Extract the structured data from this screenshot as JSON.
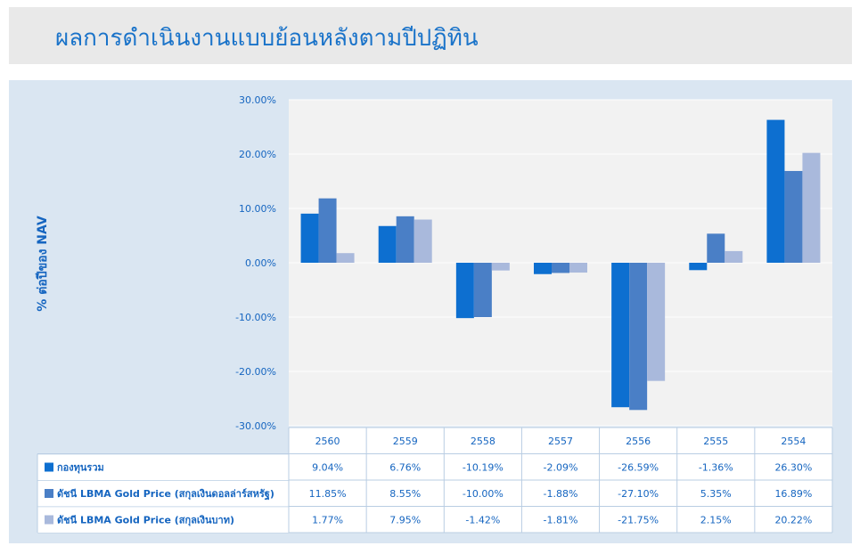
{
  "header": {
    "title": "ผลการดำเนินงานแบบย้อนหลังตามปีปฏิทิน"
  },
  "colors": {
    "fund": "#0d6fd0",
    "lbma_usd": "#4a7fc6",
    "lbma_thb": "#a9b9dc",
    "text": "#1565c0",
    "panel": "#dae6f2",
    "plot": "#f2f2f2"
  },
  "chart_data": {
    "type": "bar",
    "ylabel": "% ต่อปีของ NAV",
    "ylim": [
      -30,
      30
    ],
    "yticks": [
      "30.00%",
      "20.00%",
      "10.00%",
      "0.00%",
      "-10.00%",
      "-20.00%",
      "-30.00%"
    ],
    "ytick_values": [
      30,
      20,
      10,
      0,
      -10,
      -20,
      -30
    ],
    "categories": [
      "2560",
      "2559",
      "2558",
      "2557",
      "2556",
      "2555",
      "2554"
    ],
    "series": [
      {
        "name": "กองทุนรวม",
        "values": [
          9.04,
          6.76,
          -10.19,
          -2.09,
          -26.59,
          -1.36,
          26.3
        ],
        "labels": [
          "9.04%",
          "6.76%",
          "-10.19%",
          "-2.09%",
          "-26.59%",
          "-1.36%",
          "26.30%"
        ]
      },
      {
        "name": "ดัชนี LBMA Gold Price (สกุลเงินดอลล่าร์สหรัฐ)",
        "values": [
          11.85,
          8.55,
          -10.0,
          -1.88,
          -27.1,
          5.35,
          16.89
        ],
        "labels": [
          "11.85%",
          "8.55%",
          "-10.00%",
          "-1.88%",
          "-27.10%",
          "5.35%",
          "16.89%"
        ]
      },
      {
        "name": "ดัชนี LBMA Gold Price  (สกุลเงินบาท)",
        "values": [
          1.77,
          7.95,
          -1.42,
          -1.81,
          -21.75,
          2.15,
          20.22
        ],
        "labels": [
          "1.77%",
          "7.95%",
          "-1.42%",
          "-1.81%",
          "-21.75%",
          "2.15%",
          "20.22%"
        ]
      }
    ],
    "legend": "table-rows-left"
  }
}
